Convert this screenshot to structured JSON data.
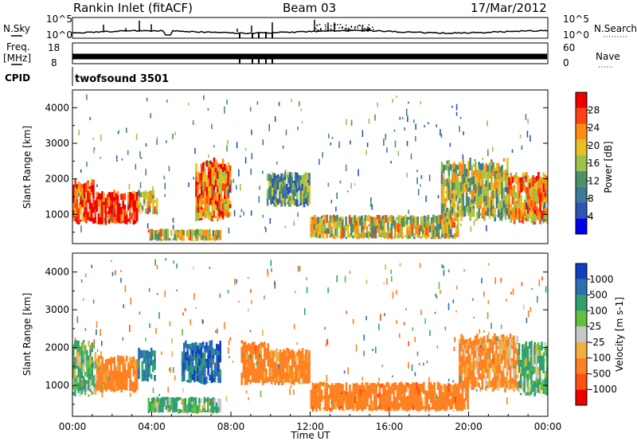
{
  "header": {
    "station": "Rankin Inlet (fitACF)",
    "beam": "Beam 03",
    "date": "17/Mar/2012"
  },
  "noise_panel": {
    "left_label": "N.Sky",
    "right_label": "N.Search",
    "left_ticks": [
      "10^5",
      "10^0"
    ],
    "right_ticks": [
      "10^5",
      "10^0"
    ]
  },
  "freq_panel": {
    "left_label_line1": "Freq.",
    "left_label_line2": "[MHz]",
    "right_label": "Nave",
    "left_ticks": [
      "18",
      "8"
    ],
    "right_ticks": [
      "60",
      "0"
    ]
  },
  "cpid_panel": {
    "label": "CPID",
    "value": "twofsound 3501"
  },
  "chart_data": [
    {
      "type": "heatmap",
      "title": "",
      "quantity": "Power",
      "ylabel": "Slant Range [km]",
      "xlabel": "",
      "ylim": [
        180,
        4500
      ],
      "yticks": [
        1000,
        2000,
        3000,
        4000
      ],
      "xlim": [
        0,
        24
      ],
      "colorbar": {
        "label": "Power [dB]",
        "range": [
          0,
          32
        ],
        "ticks": [
          4,
          8,
          12,
          16,
          20,
          24,
          28
        ],
        "colors": [
          "#0000ee",
          "#2a55b0",
          "#3a7a9a",
          "#4f8f6a",
          "#9bc24a",
          "#e8c020",
          "#ff8c10",
          "#ff4010",
          "#ee0000"
        ]
      },
      "echo_regions": [
        {
          "t0": 0.0,
          "t1": 1.1,
          "r0": 700,
          "r1": 2000,
          "power": 26
        },
        {
          "t0": 1.1,
          "t1": 3.3,
          "r0": 700,
          "r1": 1700,
          "power": 28
        },
        {
          "t0": 3.3,
          "t1": 4.3,
          "r0": 1000,
          "r1": 1700,
          "power": 18
        },
        {
          "t0": 3.8,
          "t1": 7.5,
          "r0": 250,
          "r1": 600,
          "power": 18
        },
        {
          "t0": 6.2,
          "t1": 8.0,
          "r0": 800,
          "r1": 2600,
          "power": 24
        },
        {
          "t0": 9.8,
          "t1": 12.0,
          "r0": 1200,
          "r1": 2200,
          "power": 12
        },
        {
          "t0": 12.0,
          "t1": 19.5,
          "r0": 300,
          "r1": 1000,
          "power": 18
        },
        {
          "t0": 18.6,
          "t1": 22.0,
          "r0": 800,
          "r1": 2600,
          "power": 16
        },
        {
          "t0": 22.0,
          "t1": 24.0,
          "r0": 700,
          "r1": 2200,
          "power": 22
        }
      ]
    },
    {
      "type": "heatmap",
      "title": "",
      "quantity": "Velocity",
      "ylabel": "Slant Range [km]",
      "xlabel": "Time UT",
      "ylim": [
        180,
        4500
      ],
      "yticks": [
        1000,
        2000,
        3000,
        4000
      ],
      "xlim": [
        0,
        24
      ],
      "xticks": [
        "00:00",
        "04:00",
        "08:00",
        "12:00",
        "16:00",
        "20:00",
        "00:00"
      ],
      "colorbar": {
        "label": "Velocity [m s-1]",
        "ticks": [
          "1000",
          "500",
          "100",
          "25",
          "-25",
          "-100",
          "-500",
          "-1000"
        ],
        "colors": [
          "#1040c0",
          "#2a70b0",
          "#30a070",
          "#60c040",
          "#c8c8c8",
          "#f0b040",
          "#ff8020",
          "#ff5010",
          "#ee0000"
        ]
      },
      "echo_regions": [
        {
          "t0": 0.0,
          "t1": 1.2,
          "r0": 700,
          "r1": 2200,
          "velocity": 100
        },
        {
          "t0": 1.2,
          "t1": 3.3,
          "r0": 800,
          "r1": 1800,
          "velocity": -200
        },
        {
          "t0": 3.3,
          "t1": 4.2,
          "r0": 1100,
          "r1": 2000,
          "velocity": 500
        },
        {
          "t0": 3.8,
          "t1": 7.5,
          "r0": 250,
          "r1": 700,
          "velocity": 100
        },
        {
          "t0": 5.5,
          "t1": 7.5,
          "r0": 1000,
          "r1": 2200,
          "velocity": 800
        },
        {
          "t0": 8.5,
          "t1": 10.0,
          "r0": 1000,
          "r1": 2200,
          "velocity": -300
        },
        {
          "t0": 10.0,
          "t1": 12.0,
          "r0": 1000,
          "r1": 2000,
          "velocity": -200
        },
        {
          "t0": 12.0,
          "t1": 20.0,
          "r0": 300,
          "r1": 1100,
          "velocity": -300
        },
        {
          "t0": 19.5,
          "t1": 22.5,
          "r0": 800,
          "r1": 2400,
          "velocity": -150
        },
        {
          "t0": 22.5,
          "t1": 24.0,
          "r0": 700,
          "r1": 2200,
          "velocity": 100
        }
      ]
    }
  ]
}
